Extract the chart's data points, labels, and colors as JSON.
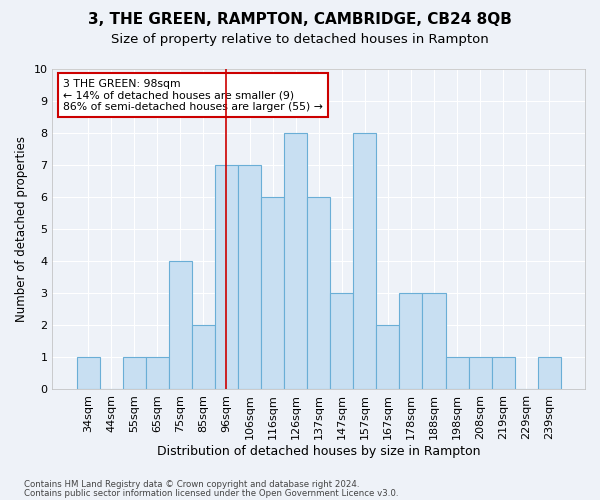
{
  "title": "3, THE GREEN, RAMPTON, CAMBRIDGE, CB24 8QB",
  "subtitle": "Size of property relative to detached houses in Rampton",
  "xlabel": "Distribution of detached houses by size in Rampton",
  "ylabel": "Number of detached properties",
  "categories": [
    "34sqm",
    "44sqm",
    "55sqm",
    "65sqm",
    "75sqm",
    "85sqm",
    "96sqm",
    "106sqm",
    "116sqm",
    "126sqm",
    "137sqm",
    "147sqm",
    "157sqm",
    "167sqm",
    "178sqm",
    "188sqm",
    "198sqm",
    "208sqm",
    "219sqm",
    "229sqm",
    "239sqm"
  ],
  "values": [
    1,
    0,
    1,
    1,
    4,
    2,
    7,
    7,
    6,
    8,
    6,
    3,
    8,
    2,
    3,
    3,
    1,
    1,
    1,
    0,
    1
  ],
  "bar_fill_color": "#c8dff2",
  "bar_edge_color": "#6aaed6",
  "annotation_text": "3 THE GREEN: 98sqm\n← 14% of detached houses are smaller (9)\n86% of semi-detached houses are larger (55) →",
  "annotation_box_color": "#ffffff",
  "annotation_box_edge": "#cc0000",
  "vline_color": "#cc0000",
  "vline_x_index": 6,
  "ylim": [
    0,
    10
  ],
  "yticks": [
    0,
    1,
    2,
    3,
    4,
    5,
    6,
    7,
    8,
    9,
    10
  ],
  "background_color": "#eef2f8",
  "plot_bg_color": "#eef2f8",
  "grid_color": "#ffffff",
  "title_fontsize": 11,
  "subtitle_fontsize": 9.5,
  "xlabel_fontsize": 9,
  "ylabel_fontsize": 8.5,
  "tick_fontsize": 8,
  "footer_line1": "Contains HM Land Registry data © Crown copyright and database right 2024.",
  "footer_line2": "Contains public sector information licensed under the Open Government Licence v3.0."
}
